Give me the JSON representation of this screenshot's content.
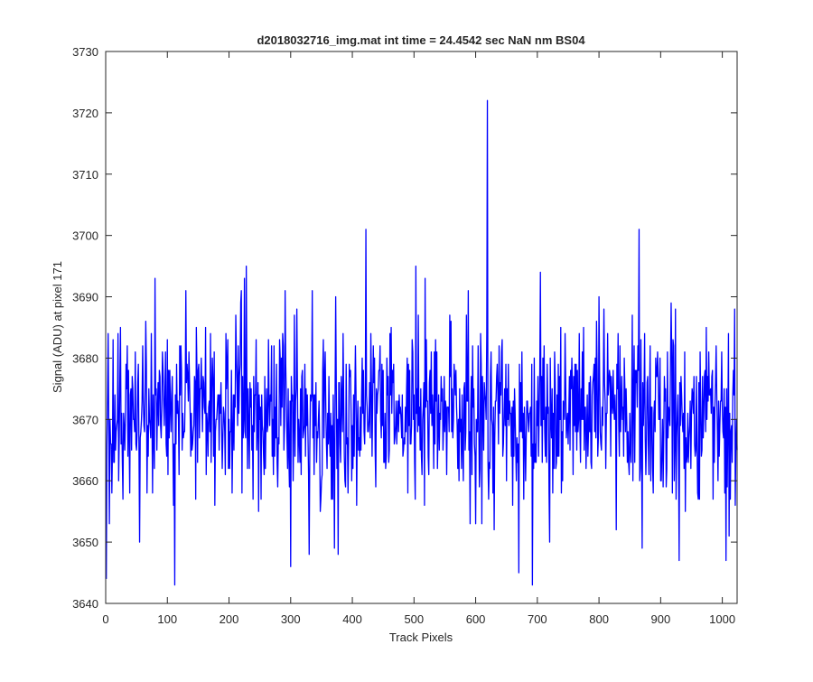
{
  "chart_data": {
    "type": "line",
    "title": "d2018032716_img.mat int time = 24.4542 sec  NaN nm BS04",
    "xlabel": "Track Pixels",
    "ylabel": "Signal (ADU) at pixel 171",
    "xlim": [
      0,
      1024
    ],
    "ylim": [
      3640,
      3730
    ],
    "xticks": [
      0,
      100,
      200,
      300,
      400,
      500,
      600,
      700,
      800,
      900,
      1000
    ],
    "yticks": [
      3640,
      3650,
      3660,
      3670,
      3680,
      3690,
      3700,
      3710,
      3720,
      3730
    ],
    "grid": false,
    "legend": "none",
    "series": [
      {
        "color": "#0000ff",
        "noise": {
          "count": 1024,
          "mean": 3671,
          "amplitude": 7,
          "min": 3649,
          "max": 3693
        },
        "points": [
          [
            1,
            3644
          ],
          [
            4,
            3684
          ],
          [
            10,
            3658
          ],
          [
            55,
            3650
          ],
          [
            80,
            3693
          ],
          [
            112,
            3643
          ],
          [
            130,
            3691
          ],
          [
            225,
            3693
          ],
          [
            228,
            3695
          ],
          [
            291,
            3691
          ],
          [
            300,
            3646
          ],
          [
            330,
            3648
          ],
          [
            371,
            3649
          ],
          [
            377,
            3648
          ],
          [
            422,
            3701
          ],
          [
            503,
            3695
          ],
          [
            518,
            3693
          ],
          [
            600,
            3653
          ],
          [
            610,
            3653
          ],
          [
            619,
            3722
          ],
          [
            630,
            3652
          ],
          [
            670,
            3645
          ],
          [
            692,
            3643
          ],
          [
            705,
            3694
          ],
          [
            720,
            3650
          ],
          [
            865,
            3701
          ],
          [
            930,
            3647
          ],
          [
            1006,
            3647
          ],
          [
            1020,
            3688
          ]
        ]
      }
    ]
  }
}
